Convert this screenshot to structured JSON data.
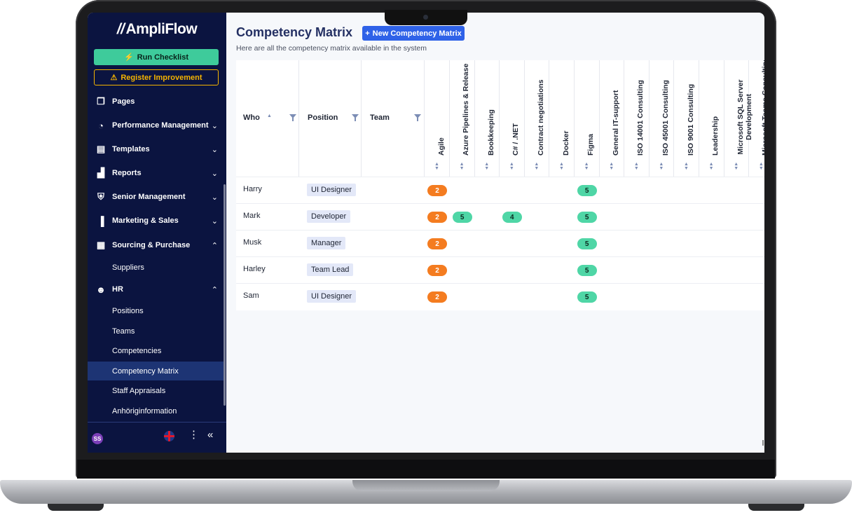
{
  "app": {
    "logo_text": "AmpliFlow",
    "logo_mark": "//"
  },
  "sidebar": {
    "run_checklist": "Run Checklist",
    "register_improvement": "Register Improvement",
    "items": [
      {
        "label": "Pages",
        "icon": "pages-icon"
      },
      {
        "label": "Performance Management",
        "icon": "gauge-icon"
      },
      {
        "label": "Templates",
        "icon": "document-icon"
      },
      {
        "label": "Reports",
        "icon": "bar-chart-icon"
      },
      {
        "label": "Senior Management",
        "icon": "shield-icon"
      },
      {
        "label": "Marketing & Sales",
        "icon": "campaign-icon"
      },
      {
        "label": "Sourcing & Purchase",
        "icon": "receipt-icon"
      },
      {
        "label": "HR",
        "icon": "people-icon"
      }
    ],
    "sourcing_sub": [
      "Suppliers"
    ],
    "hr_sub": [
      "Positions",
      "Teams",
      "Competencies",
      "Competency Matrix",
      "Staff Appraisals",
      "Anhöriginformation"
    ],
    "active": "Competency Matrix",
    "footer": {
      "avatar_initials": "SS",
      "language": "en-GB"
    }
  },
  "main": {
    "title": "Competency Matrix",
    "new_button": "New Competency Matrix",
    "subtitle": "Here are all the competency matrix available in the system",
    "columns": {
      "who": "Who",
      "position": "Position",
      "team": "Team"
    },
    "competencies": [
      "Agile",
      "Azure Pipelines & Release",
      "Bookkeeping",
      "C# / .NET",
      "Contract negotiations",
      "Docker",
      "Figma",
      "General IT-support",
      "ISO 14001 Consulting",
      "ISO 45001 Consulting",
      "ISO 9001 Consulting",
      "Leadership",
      "Microsoft SQL Server Development",
      "Microsoft Teams Consulting"
    ],
    "rows": [
      {
        "who": "Harry",
        "position": "UI Designer",
        "team": "",
        "scores": [
          {
            "col": 0,
            "value": "2"
          },
          {
            "col": 6,
            "value": "5"
          }
        ]
      },
      {
        "who": "Mark",
        "position": "Developer",
        "team": "",
        "scores": [
          {
            "col": 0,
            "value": "2"
          },
          {
            "col": 1,
            "value": "5"
          },
          {
            "col": 3,
            "value": "4"
          },
          {
            "col": 6,
            "value": "5"
          }
        ]
      },
      {
        "who": "Musk",
        "position": "Manager",
        "team": "",
        "scores": [
          {
            "col": 0,
            "value": "2"
          },
          {
            "col": 6,
            "value": "5"
          }
        ]
      },
      {
        "who": "Harley",
        "position": "Team Lead",
        "team": "",
        "scores": [
          {
            "col": 0,
            "value": "2"
          },
          {
            "col": 6,
            "value": "5"
          }
        ]
      },
      {
        "who": "Sam",
        "position": "UI Designer",
        "team": "",
        "scores": [
          {
            "col": 0,
            "value": "2"
          },
          {
            "col": 6,
            "value": "5"
          }
        ]
      }
    ],
    "colors": {
      "low_score": "#f47c20",
      "high_score": "#4fd6a6",
      "accent": "#2f62e8",
      "sidebar_bg": "#0b1440"
    }
  }
}
